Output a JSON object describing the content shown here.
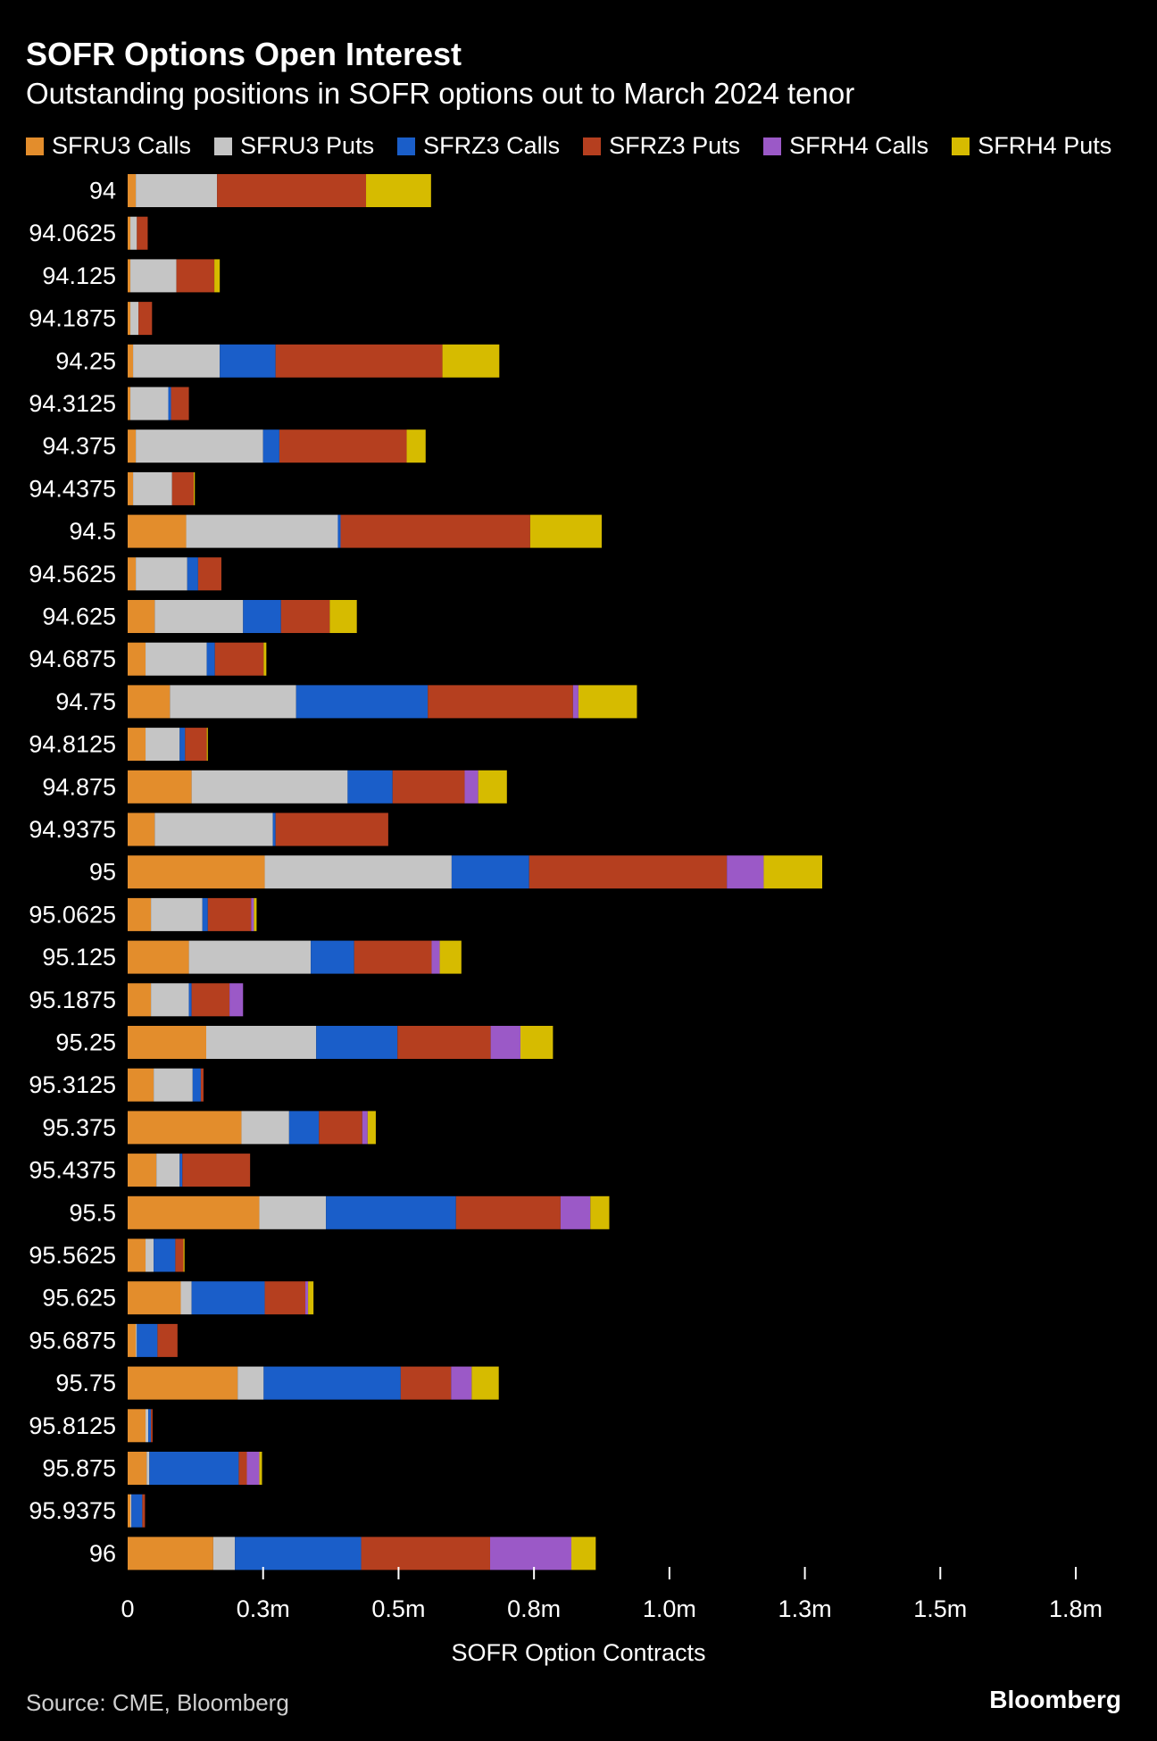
{
  "header": {
    "title": "SOFR Options Open Interest",
    "subtitle": "Outstanding positions in SOFR options out to March 2024 tenor"
  },
  "footer": {
    "source": "Source: CME, Bloomberg",
    "brand": "Bloomberg"
  },
  "chart_data": {
    "type": "bar",
    "orientation": "horizontal",
    "stacked": true,
    "xlabel": "SOFR Option Contracts",
    "xlim": [
      0,
      1750000
    ],
    "xticks": [
      {
        "value": 0,
        "label": "0"
      },
      {
        "value": 250000,
        "label": "0.3m"
      },
      {
        "value": 500000,
        "label": "0.5m"
      },
      {
        "value": 750000,
        "label": "0.8m"
      },
      {
        "value": 1000000,
        "label": "1.0m"
      },
      {
        "value": 1250000,
        "label": "1.3m"
      },
      {
        "value": 1500000,
        "label": "1.5m"
      },
      {
        "value": 1750000,
        "label": "1.8m"
      }
    ],
    "grid": false,
    "legend_position": "top",
    "categories": [
      "94",
      "94.0625",
      "94.125",
      "94.1875",
      "94.25",
      "94.3125",
      "94.375",
      "94.4375",
      "94.5",
      "94.5625",
      "94.625",
      "94.6875",
      "94.75",
      "94.8125",
      "94.875",
      "94.9375",
      "95",
      "95.0625",
      "95.125",
      "95.1875",
      "95.25",
      "95.3125",
      "95.375",
      "95.4375",
      "95.5",
      "95.5625",
      "95.625",
      "95.6875",
      "95.75",
      "95.8125",
      "95.875",
      "95.9375",
      "96"
    ],
    "series": [
      {
        "name": "SFRU3 Calls",
        "color": "#e38d2c",
        "values": [
          15000,
          5000,
          5000,
          5000,
          10000,
          5000,
          15000,
          10000,
          108000,
          15000,
          50000,
          33000,
          78000,
          33000,
          118000,
          50000,
          253000,
          43000,
          113000,
          43000,
          145000,
          48000,
          210000,
          53000,
          243000,
          33000,
          98000,
          15000,
          203000,
          33000,
          35000,
          5000,
          158000
        ]
      },
      {
        "name": "SFRU3 Puts",
        "color": "#c5c5c5",
        "values": [
          150000,
          12000,
          85000,
          15000,
          160000,
          70000,
          235000,
          72000,
          280000,
          95000,
          163000,
          113000,
          233000,
          63000,
          288000,
          218000,
          345000,
          95000,
          225000,
          70000,
          203000,
          72000,
          88000,
          43000,
          123000,
          15000,
          20000,
          2000,
          48000,
          5000,
          5000,
          2000,
          40000
        ]
      },
      {
        "name": "SFRZ3 Calls",
        "color": "#1a5ec9",
        "values": [
          0,
          0,
          0,
          0,
          103000,
          5000,
          30000,
          0,
          5000,
          20000,
          70000,
          15000,
          243000,
          10000,
          83000,
          5000,
          143000,
          10000,
          80000,
          5000,
          150000,
          15000,
          55000,
          5000,
          240000,
          40000,
          135000,
          38000,
          253000,
          5000,
          165000,
          20000,
          233000
        ]
      },
      {
        "name": "SFRZ3 Puts",
        "color": "#b53f1f",
        "values": [
          275000,
          20000,
          70000,
          25000,
          308000,
          33000,
          235000,
          40000,
          350000,
          43000,
          90000,
          90000,
          268000,
          40000,
          133000,
          208000,
          365000,
          80000,
          143000,
          70000,
          172000,
          5000,
          80000,
          125000,
          193000,
          15000,
          75000,
          37000,
          93000,
          3000,
          15000,
          5000,
          238000
        ]
      },
      {
        "name": "SFRH4 Calls",
        "color": "#9b59c7",
        "values": [
          0,
          0,
          0,
          0,
          0,
          0,
          0,
          0,
          0,
          0,
          0,
          0,
          10000,
          0,
          25000,
          0,
          68000,
          5000,
          15000,
          25000,
          55000,
          0,
          10000,
          0,
          55000,
          0,
          5000,
          0,
          38000,
          0,
          23000,
          0,
          150000
        ]
      },
      {
        "name": "SFRH4 Puts",
        "color": "#d6bb00",
        "values": [
          120000,
          0,
          10000,
          0,
          105000,
          0,
          35000,
          2000,
          132000,
          0,
          50000,
          5000,
          108000,
          2000,
          53000,
          0,
          108000,
          5000,
          40000,
          0,
          60000,
          0,
          15000,
          0,
          35000,
          2000,
          10000,
          0,
          50000,
          0,
          5000,
          0,
          45000
        ]
      }
    ]
  }
}
